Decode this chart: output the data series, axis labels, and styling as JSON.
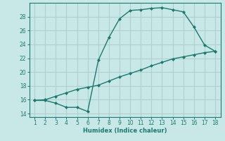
{
  "xlabel": "Humidex (Indice chaleur)",
  "line_color": "#1a7a6e",
  "bg_color": "#c8e8e8",
  "grid_color": "#b0d0d0",
  "curve1_x": [
    1,
    2,
    3,
    4,
    5,
    6,
    7,
    8,
    9,
    10,
    11,
    12,
    13,
    14,
    15,
    16,
    17,
    18
  ],
  "curve1_y": [
    15.9,
    15.9,
    15.5,
    14.9,
    14.9,
    14.3,
    21.7,
    25.0,
    27.7,
    28.9,
    29.0,
    29.2,
    29.3,
    29.0,
    28.7,
    26.5,
    23.9,
    23.0
  ],
  "curve2_x": [
    1,
    2,
    3,
    4,
    5,
    6,
    7,
    8,
    9,
    10,
    11,
    12,
    13,
    14,
    15,
    16,
    17,
    18
  ],
  "curve2_y": [
    15.9,
    16.0,
    16.5,
    17.0,
    17.5,
    17.8,
    18.1,
    18.7,
    19.3,
    19.8,
    20.3,
    20.9,
    21.4,
    21.9,
    22.2,
    22.5,
    22.8,
    23.0
  ],
  "xlim": [
    0.5,
    18.5
  ],
  "ylim": [
    13.5,
    30.0
  ],
  "yticks": [
    14,
    16,
    18,
    20,
    22,
    24,
    26,
    28
  ],
  "xticks": [
    1,
    2,
    3,
    4,
    5,
    6,
    7,
    8,
    9,
    10,
    11,
    12,
    13,
    14,
    15,
    16,
    17,
    18
  ]
}
